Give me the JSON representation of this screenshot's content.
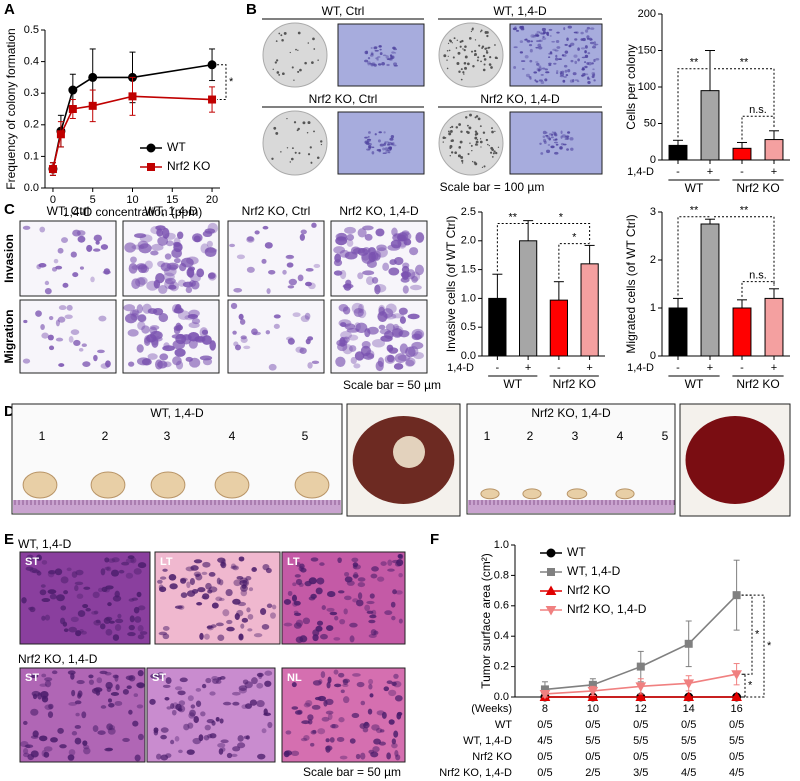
{
  "panel_letters": [
    "A",
    "B",
    "C",
    "D",
    "E",
    "F"
  ],
  "colony_images": {
    "captions": [
      "WT, Ctrl",
      "WT, 1,4-D",
      "Nrf2 KO, Ctrl",
      "Nrf2 KO, 1,4-D"
    ],
    "scale": "Scale bar = 100 µm"
  },
  "transwell_images": {
    "columns": [
      "WT, Ctrl",
      "WT, 1,4-D",
      "Nrf2 KO, Ctrl",
      "Nrf2 KO, 1,4-D"
    ],
    "rows": [
      "Invasion",
      "Migration"
    ],
    "scale": "Scale bar = 50 µm"
  },
  "tumor_photos": {
    "groups": [
      {
        "title": "WT, 1,4-D",
        "numbers": [
          "1",
          "2",
          "3",
          "4",
          "5"
        ]
      },
      {
        "title": "Nrf2 KO, 1,4-D",
        "numbers": [
          "1",
          "2",
          "3",
          "4",
          "5"
        ]
      }
    ]
  },
  "histology": {
    "groups": [
      {
        "title": "WT, 1,4-D",
        "tags": [
          "ST",
          "LT",
          "LT"
        ]
      },
      {
        "title": "Nrf2 KO, 1,4-D",
        "tags": [
          "ST",
          "ST",
          "NL"
        ]
      }
    ],
    "scale": "Scale bar = 50 µm"
  },
  "chart_data": [
    {
      "type": "line",
      "xlabel": "1,4-D concentration (ppm)",
      "ylabel": "Frequency of colony formation",
      "x": [
        0,
        1,
        2.5,
        5,
        10,
        20
      ],
      "xlim": [
        -1,
        21
      ],
      "xticks": [
        0,
        5,
        10,
        15,
        20
      ],
      "ylim": [
        0,
        0.5
      ],
      "yticks": [
        {
          "value": 0,
          "label": "0.0"
        },
        0.1,
        0.2,
        0.3,
        0.4,
        0.5
      ],
      "series": [
        {
          "name": "WT",
          "color": "#000000",
          "marker": "circle",
          "values": [
            0.06,
            0.18,
            0.31,
            0.35,
            0.35,
            0.39
          ],
          "errors": [
            0.02,
            0.05,
            0.05,
            0.09,
            0.08,
            0.05
          ]
        },
        {
          "name": "Nrf2 KO",
          "color": "#c00000",
          "marker": "square",
          "values": [
            0.06,
            0.17,
            0.25,
            0.26,
            0.29,
            0.28
          ],
          "errors": [
            0.02,
            0.04,
            0.03,
            0.05,
            0.06,
            0.04
          ]
        }
      ],
      "annotations": [
        "*"
      ]
    },
    {
      "type": "bar",
      "ylabel": "Cells per colony",
      "categories": [
        "-",
        "+",
        "-",
        "+"
      ],
      "group_label": "1,4-D",
      "groups": [
        "WT",
        "Nrf2 KO"
      ],
      "values": [
        20,
        95,
        16,
        28
      ],
      "errors": [
        7,
        55,
        8,
        12
      ],
      "colors": [
        "#000000",
        "#a6a6a6",
        "#ff0000",
        "#f4a0a0"
      ],
      "ylim": [
        0,
        200
      ],
      "yticks": [
        0,
        50,
        100,
        150,
        200
      ],
      "annotations": [
        "**",
        "**",
        "n.s."
      ]
    },
    {
      "type": "bar",
      "ylabel": "Invasive cells (of WT Ctrl)",
      "categories": [
        "-",
        "+",
        "-",
        "+"
      ],
      "group_label": "1,4-D",
      "groups": [
        "WT",
        "Nrf2 KO"
      ],
      "values": [
        1.0,
        2.0,
        0.97,
        1.6
      ],
      "errors": [
        0.42,
        0.35,
        0.32,
        0.32
      ],
      "colors": [
        "#000000",
        "#a6a6a6",
        "#ff0000",
        "#f4a0a0"
      ],
      "ylim": [
        0,
        2.5
      ],
      "yticks": [
        {
          "value": 0,
          "label": "0.0"
        },
        0.5,
        {
          "value": 1,
          "label": "1.0"
        },
        1.5,
        {
          "value": 2,
          "label": "2.0"
        },
        2.5
      ],
      "annotations": [
        "**",
        "*",
        "*"
      ]
    },
    {
      "type": "bar",
      "ylabel": "Migrated cells (of WT Ctrl)",
      "categories": [
        "-",
        "+",
        "-",
        "+"
      ],
      "group_label": "1,4-D",
      "groups": [
        "WT",
        "Nrf2 KO"
      ],
      "values": [
        1.0,
        2.75,
        1.0,
        1.2
      ],
      "errors": [
        0.2,
        0.1,
        0.17,
        0.2
      ],
      "colors": [
        "#000000",
        "#a6a6a6",
        "#ff0000",
        "#f4a0a0"
      ],
      "ylim": [
        0,
        3
      ],
      "yticks": [
        0,
        1,
        2,
        3
      ],
      "annotations": [
        "**",
        "**",
        "n.s."
      ]
    },
    {
      "type": "line",
      "xlabel": "(Weeks)",
      "ylabel": "Tumor surface area (cm²)",
      "x": [
        8,
        10,
        12,
        14,
        16
      ],
      "xlim": [
        6.75,
        16.35
      ],
      "xticks": [
        8,
        10,
        12,
        14,
        16
      ],
      "ylim": [
        0,
        1
      ],
      "yticks": [
        {
          "value": 0,
          "label": "0.0"
        },
        0.2,
        0.4,
        0.6,
        0.8,
        {
          "value": 1,
          "label": "1.0"
        }
      ],
      "series": [
        {
          "name": "WT",
          "color": "#000000",
          "marker": "circle",
          "values": [
            0,
            0,
            0,
            0,
            0
          ]
        },
        {
          "name": "WT, 1,4-D",
          "color": "#808080",
          "marker": "square",
          "values": [
            0.05,
            0.08,
            0.2,
            0.35,
            0.67
          ],
          "errors": [
            0.05,
            0.04,
            0.1,
            0.15,
            0.23
          ]
        },
        {
          "name": "Nrf2 KO",
          "color": "#e00000",
          "marker": "triangle",
          "values": [
            0,
            0,
            0,
            0,
            0
          ]
        },
        {
          "name": "Nrf2 KO, 1,4-D",
          "color": "#f08080",
          "marker": "triangle_down",
          "values": [
            0.02,
            0.04,
            0.07,
            0.09,
            0.15
          ],
          "errors": [
            0.02,
            0.03,
            0.05,
            0.05,
            0.07
          ]
        }
      ],
      "annotations": [
        "*",
        "*",
        "*"
      ],
      "table": {
        "rows": [
          {
            "name": "WT",
            "cells": [
              "0/5",
              "0/5",
              "0/5",
              "0/5",
              "0/5"
            ]
          },
          {
            "name": "WT, 1,4-D",
            "cells": [
              "4/5",
              "5/5",
              "5/5",
              "5/5",
              "5/5"
            ]
          },
          {
            "name": "Nrf2 KO",
            "cells": [
              "0/5",
              "0/5",
              "0/5",
              "0/5",
              "0/5"
            ]
          },
          {
            "name": "Nrf2 KO, 1,4-D",
            "cells": [
              "0/5",
              "2/5",
              "3/5",
              "4/5",
              "4/5"
            ]
          }
        ]
      }
    }
  ]
}
